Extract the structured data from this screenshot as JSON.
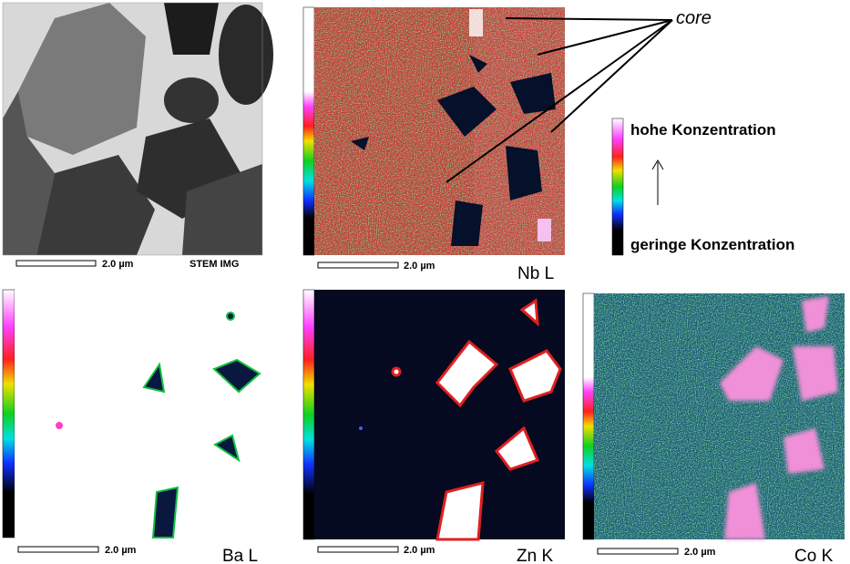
{
  "annotation": "core",
  "legend": {
    "high": "hohe Konzentration",
    "low": "geringe Konzentration"
  },
  "panels": [
    {
      "label": "STEM IMG",
      "scale": "2.0 µm"
    },
    {
      "label": "Nb L",
      "scale": "2.0 µm"
    },
    {
      "label": "Ba L",
      "scale": "2.0 µm"
    },
    {
      "label": "Zn K",
      "scale": "2.0 µm"
    },
    {
      "label": "Co K",
      "scale": "2.0 µm"
    }
  ]
}
